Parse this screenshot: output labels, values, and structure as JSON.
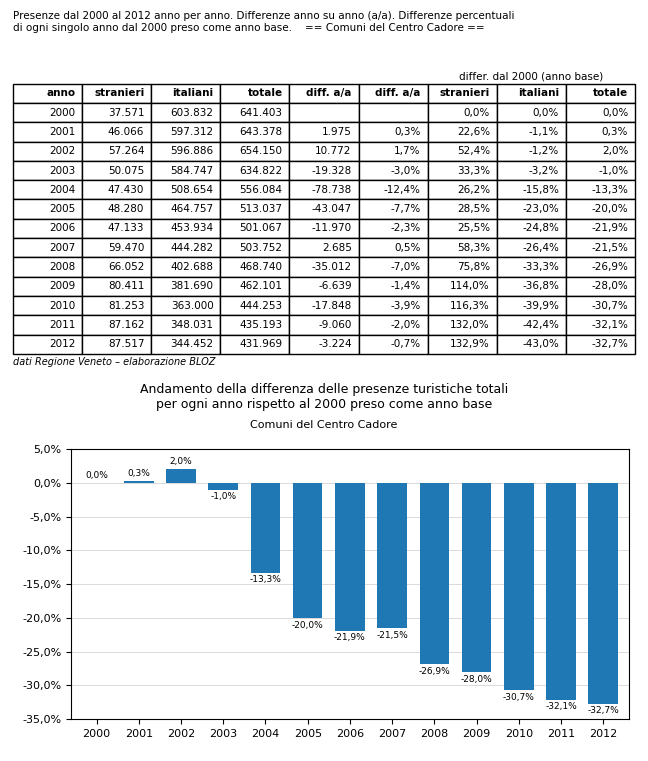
{
  "chart_data": [
    {
      "type": "table",
      "title": "Presenze dal 2000 al 2012 anno per anno. Differenze anno su anno (a/a). Differenze percentuali\ndi ogni singolo anno dal 2000 preso come anno base.    == Comuni del Centro Cadore ==",
      "columns": [
        "anno",
        "stranieri",
        "italiani",
        "totale",
        "diff. a/a",
        "diff. a/a",
        "stranieri",
        "italiani",
        "totale"
      ],
      "annotations": [
        "differ. dal 2000 (anno base)",
        "dati Regione Veneto – elaborazione BLOZ"
      ],
      "rows": [
        [
          "2000",
          "37.571",
          "603.832",
          "641.403",
          null,
          null,
          "0,0%",
          "0,0%",
          "0,0%"
        ],
        [
          "2001",
          "46.066",
          "597.312",
          "643.378",
          "1.975",
          "0,3%",
          "22,6%",
          "-1,1%",
          "0,3%"
        ],
        [
          "2002",
          "57.264",
          "596.886",
          "654.150",
          "10.772",
          "1,7%",
          "52,4%",
          "-1,2%",
          "2,0%"
        ],
        [
          "2003",
          "50.075",
          "584.747",
          "634.822",
          "-19.328",
          "-3,0%",
          "33,3%",
          "-3,2%",
          "-1,0%"
        ],
        [
          "2004",
          "47.430",
          "508.654",
          "556.084",
          "-78.738",
          "-12,4%",
          "26,2%",
          "-15,8%",
          "-13,3%"
        ],
        [
          "2005",
          "48.280",
          "464.757",
          "513.037",
          "-43.047",
          "-7,7%",
          "28,5%",
          "-23,0%",
          "-20,0%"
        ],
        [
          "2006",
          "47.133",
          "453.934",
          "501.067",
          "-11.970",
          "-2,3%",
          "25,5%",
          "-24,8%",
          "-21,9%"
        ],
        [
          "2007",
          "59.470",
          "444.282",
          "503.752",
          "2.685",
          "0,5%",
          "58,3%",
          "-26,4%",
          "-21,5%"
        ],
        [
          "2008",
          "66.052",
          "402.688",
          "468.740",
          "-35.012",
          "-7,0%",
          "75,8%",
          "-33,3%",
          "-26,9%"
        ],
        [
          "2009",
          "80.411",
          "381.690",
          "462.101",
          "-6.639",
          "-1,4%",
          "114,0%",
          "-36,8%",
          "-28,0%"
        ],
        [
          "2010",
          "81.253",
          "363.000",
          "444.253",
          "-17.848",
          "-3,9%",
          "116,3%",
          "-39,9%",
          "-30,7%"
        ],
        [
          "2011",
          "87.162",
          "348.031",
          "435.193",
          "-9.060",
          "-2,0%",
          "132,0%",
          "-42,4%",
          "-32,1%"
        ],
        [
          "2012",
          "87.517",
          "344.452",
          "431.969",
          "-3.224",
          "-0,7%",
          "132,9%",
          "-43,0%",
          "-32,7%"
        ]
      ]
    },
    {
      "type": "bar",
      "title": "Andamento della differenza delle presenze turistiche totali\nper ogni anno rispetto al 2000 preso come anno base",
      "subtitle": "Comuni del Centro Cadore",
      "categories": [
        "2000",
        "2001",
        "2002",
        "2003",
        "2004",
        "2005",
        "2006",
        "2007",
        "2008",
        "2009",
        "2010",
        "2011",
        "2012"
      ],
      "values": [
        0.0,
        0.3,
        2.0,
        -1.0,
        -13.3,
        -20.0,
        -21.9,
        -21.5,
        -26.9,
        -28.0,
        -30.7,
        -32.1,
        -32.7
      ],
      "value_labels": [
        "0,0%",
        "0,3%",
        "2,0%",
        "-1,0%",
        "-13,3%",
        "-20,0%",
        "-21,9%",
        "-21,5%",
        "-26,9%",
        "-28,0%",
        "-30,7%",
        "-32,1%",
        "-32,7%"
      ],
      "data_labels": true,
      "ylim": [
        -35.0,
        5.0
      ],
      "yticks": [
        {
          "value": 5.0,
          "label": "5,0%"
        },
        {
          "value": 0.0,
          "label": "0,0%"
        },
        {
          "value": -5.0,
          "label": "-5,0%"
        },
        {
          "value": -10.0,
          "label": "-10,0%"
        },
        {
          "value": -15.0,
          "label": "-15,0%"
        },
        {
          "value": -20.0,
          "label": "-20,0%"
        },
        {
          "value": -25.0,
          "label": "-25,0%"
        },
        {
          "value": -30.0,
          "label": "-30,0%"
        },
        {
          "value": -35.0,
          "label": "-35,0%"
        }
      ],
      "grid": "y"
    }
  ]
}
